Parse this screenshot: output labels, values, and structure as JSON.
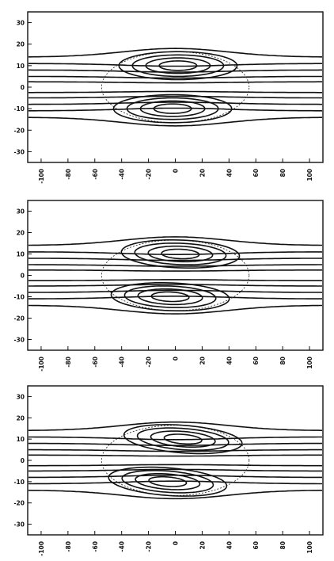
{
  "panels": [
    {
      "id": "top",
      "x_ticks": [
        "-100",
        "-80",
        "-60",
        "-40",
        "-20",
        "0",
        "20",
        "40",
        "60",
        "80",
        "100"
      ],
      "y_ticks": [
        "30",
        "20",
        "10",
        "0",
        "-10",
        "-20",
        "-30"
      ],
      "tilt": 0
    },
    {
      "id": "middle",
      "x_ticks": [
        "-100",
        "-80",
        "-60",
        "-40",
        "-20",
        "0",
        "20",
        "40",
        "60",
        "80",
        "100"
      ],
      "y_ticks": [
        "30",
        "20",
        "10",
        "0",
        "-10",
        "-20",
        "-30"
      ],
      "tilt": 0.3
    },
    {
      "id": "bottom",
      "x_ticks": [
        "-100",
        "-80",
        "-60",
        "-40",
        "-20",
        "0",
        "20",
        "40",
        "60",
        "80",
        "100"
      ],
      "y_ticks": [
        "30",
        "20",
        "10",
        "0",
        "-10",
        "-20",
        "-30"
      ],
      "tilt": 0.62
    }
  ],
  "x_range": [
    -110,
    110
  ],
  "y_range": [
    -35,
    35
  ]
}
